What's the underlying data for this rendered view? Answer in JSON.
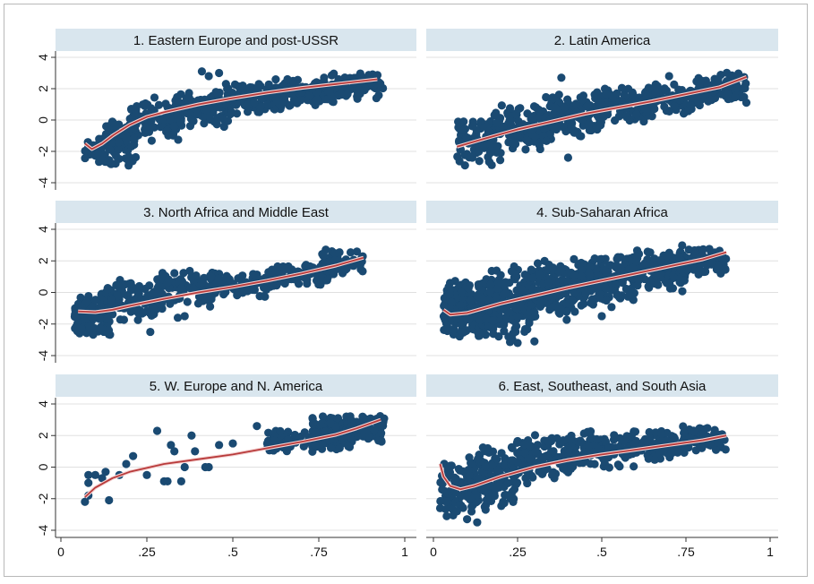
{
  "chart_data": {
    "type": "scatter",
    "xlim": [
      0,
      1
    ],
    "ylim": [
      -4,
      4
    ],
    "x_ticks": [
      {
        "value": 0,
        "label": "0"
      },
      {
        "value": 0.25,
        "label": ".25"
      },
      {
        "value": 0.5,
        "label": ".5"
      },
      {
        "value": 0.75,
        "label": ".75"
      },
      {
        "value": 1,
        "label": "1"
      }
    ],
    "y_ticks": [
      {
        "value": 4,
        "label": "4"
      },
      {
        "value": 2,
        "label": "2"
      },
      {
        "value": 0,
        "label": "0"
      },
      {
        "value": -2,
        "label": "-2"
      },
      {
        "value": -4,
        "label": "-4"
      }
    ],
    "grid": "horizontal",
    "colors": {
      "points": "#1a4a72",
      "fit_line": "#b83a3a",
      "title_band": "#d9e6ee",
      "grid": "#e0e0e0"
    },
    "panels": [
      {
        "title": "1. Eastern Europe and post-USSR",
        "fit_line": [
          [
            0.07,
            -1.5
          ],
          [
            0.09,
            -1.85
          ],
          [
            0.12,
            -1.5
          ],
          [
            0.15,
            -1.0
          ],
          [
            0.2,
            -0.3
          ],
          [
            0.25,
            0.2
          ],
          [
            0.3,
            0.5
          ],
          [
            0.4,
            1.0
          ],
          [
            0.5,
            1.4
          ],
          [
            0.6,
            1.75
          ],
          [
            0.7,
            2.05
          ],
          [
            0.8,
            2.3
          ],
          [
            0.92,
            2.6
          ]
        ],
        "clusters": [
          {
            "x": [
              0.07,
              0.12
            ],
            "y": [
              -3.0,
              -1.0
            ],
            "n": 40
          },
          {
            "x": [
              0.12,
              0.22
            ],
            "y": [
              -3.2,
              0.5
            ],
            "n": 90
          },
          {
            "x": [
              0.2,
              0.35
            ],
            "y": [
              -1.5,
              1.5
            ],
            "n": 100
          },
          {
            "x": [
              0.33,
              0.5
            ],
            "y": [
              -0.5,
              2.0
            ],
            "n": 110
          },
          {
            "x": [
              0.48,
              0.65
            ],
            "y": [
              0.3,
              2.5
            ],
            "n": 120
          },
          {
            "x": [
              0.6,
              0.8
            ],
            "y": [
              0.8,
              2.8
            ],
            "n": 120
          },
          {
            "x": [
              0.78,
              0.94
            ],
            "y": [
              1.3,
              3.1
            ],
            "n": 90
          }
        ],
        "outliers": [
          [
            0.41,
            3.1
          ],
          [
            0.46,
            3.0
          ],
          [
            0.48,
            2.3
          ],
          [
            0.43,
            2.8
          ]
        ]
      },
      {
        "title": "2. Latin America",
        "fit_line": [
          [
            0.07,
            -1.7
          ],
          [
            0.15,
            -1.2
          ],
          [
            0.25,
            -0.6
          ],
          [
            0.35,
            -0.1
          ],
          [
            0.45,
            0.4
          ],
          [
            0.55,
            0.8
          ],
          [
            0.65,
            1.2
          ],
          [
            0.75,
            1.65
          ],
          [
            0.85,
            2.1
          ],
          [
            0.93,
            2.75
          ]
        ],
        "clusters": [
          {
            "x": [
              0.07,
              0.2
            ],
            "y": [
              -3.0,
              0.3
            ],
            "n": 100
          },
          {
            "x": [
              0.18,
              0.35
            ],
            "y": [
              -2.2,
              1.0
            ],
            "n": 120
          },
          {
            "x": [
              0.33,
              0.5
            ],
            "y": [
              -1.2,
              1.8
            ],
            "n": 120
          },
          {
            "x": [
              0.48,
              0.65
            ],
            "y": [
              -0.3,
              2.2
            ],
            "n": 120
          },
          {
            "x": [
              0.62,
              0.8
            ],
            "y": [
              0.3,
              2.4
            ],
            "n": 110
          },
          {
            "x": [
              0.78,
              0.93
            ],
            "y": [
              1.0,
              3.1
            ],
            "n": 90
          }
        ],
        "outliers": [
          [
            0.4,
            -2.4
          ],
          [
            0.38,
            2.7
          ],
          [
            0.7,
            2.8
          ]
        ]
      },
      {
        "title": "3. North Africa and Middle East",
        "fit_line": [
          [
            0.05,
            -1.2
          ],
          [
            0.1,
            -1.25
          ],
          [
            0.15,
            -1.1
          ],
          [
            0.2,
            -0.85
          ],
          [
            0.3,
            -0.4
          ],
          [
            0.4,
            0.0
          ],
          [
            0.5,
            0.35
          ],
          [
            0.6,
            0.75
          ],
          [
            0.7,
            1.2
          ],
          [
            0.8,
            1.7
          ],
          [
            0.88,
            2.2
          ]
        ],
        "clusters": [
          {
            "x": [
              0.04,
              0.15
            ],
            "y": [
              -3.0,
              0.2
            ],
            "n": 100
          },
          {
            "x": [
              0.13,
              0.3
            ],
            "y": [
              -2.0,
              1.0
            ],
            "n": 110
          },
          {
            "x": [
              0.28,
              0.45
            ],
            "y": [
              -1.0,
              1.5
            ],
            "n": 90
          },
          {
            "x": [
              0.43,
              0.62
            ],
            "y": [
              -0.5,
              1.5
            ],
            "n": 80
          },
          {
            "x": [
              0.6,
              0.78
            ],
            "y": [
              0.2,
              2.0
            ],
            "n": 80
          },
          {
            "x": [
              0.76,
              0.88
            ],
            "y": [
              1.0,
              2.8
            ],
            "n": 60
          }
        ],
        "outliers": [
          [
            0.26,
            -2.5
          ],
          [
            0.34,
            -1.6
          ],
          [
            0.36,
            -1.5
          ]
        ]
      },
      {
        "title": "4. Sub-Saharan Africa",
        "fit_line": [
          [
            0.03,
            -1.1
          ],
          [
            0.05,
            -1.4
          ],
          [
            0.1,
            -1.3
          ],
          [
            0.2,
            -0.7
          ],
          [
            0.3,
            -0.2
          ],
          [
            0.4,
            0.3
          ],
          [
            0.5,
            0.75
          ],
          [
            0.6,
            1.2
          ],
          [
            0.7,
            1.65
          ],
          [
            0.8,
            2.1
          ],
          [
            0.87,
            2.55
          ]
        ],
        "clusters": [
          {
            "x": [
              0.03,
              0.15
            ],
            "y": [
              -3.0,
              0.8
            ],
            "n": 200
          },
          {
            "x": [
              0.13,
              0.3
            ],
            "y": [
              -3.2,
              1.8
            ],
            "n": 220
          },
          {
            "x": [
              0.28,
              0.45
            ],
            "y": [
              -1.8,
              2.2
            ],
            "n": 180
          },
          {
            "x": [
              0.43,
              0.6
            ],
            "y": [
              -1.0,
              2.5
            ],
            "n": 160
          },
          {
            "x": [
              0.58,
              0.75
            ],
            "y": [
              0.0,
              2.8
            ],
            "n": 140
          },
          {
            "x": [
              0.73,
              0.87
            ],
            "y": [
              1.0,
              3.0
            ],
            "n": 100
          }
        ],
        "outliers": [
          [
            0.25,
            -3.2
          ],
          [
            0.3,
            -3.1
          ],
          [
            0.5,
            -1.5
          ]
        ]
      },
      {
        "title": "5. W. Europe and N. America",
        "fit_line": [
          [
            0.07,
            -1.9
          ],
          [
            0.1,
            -1.3
          ],
          [
            0.15,
            -0.7
          ],
          [
            0.2,
            -0.3
          ],
          [
            0.3,
            0.2
          ],
          [
            0.4,
            0.5
          ],
          [
            0.5,
            0.8
          ],
          [
            0.6,
            1.2
          ],
          [
            0.7,
            1.6
          ],
          [
            0.8,
            2.05
          ],
          [
            0.86,
            2.45
          ],
          [
            0.93,
            3.0
          ]
        ],
        "clusters": [
          {
            "x": [
              0.6,
              0.75
            ],
            "y": [
              0.8,
              2.4
            ],
            "n": 80
          },
          {
            "x": [
              0.73,
              0.85
            ],
            "y": [
              1.0,
              3.3
            ],
            "n": 160
          },
          {
            "x": [
              0.83,
              0.94
            ],
            "y": [
              1.5,
              3.4
            ],
            "n": 130
          }
        ],
        "outliers": [
          [
            0.07,
            -2.2
          ],
          [
            0.08,
            -1.8
          ],
          [
            0.08,
            -1.0
          ],
          [
            0.08,
            -0.5
          ],
          [
            0.1,
            -0.5
          ],
          [
            0.12,
            -0.7
          ],
          [
            0.13,
            -0.3
          ],
          [
            0.14,
            -2.1
          ],
          [
            0.17,
            -0.5
          ],
          [
            0.19,
            0.2
          ],
          [
            0.21,
            0.7
          ],
          [
            0.25,
            -0.5
          ],
          [
            0.28,
            2.3
          ],
          [
            0.3,
            -0.9
          ],
          [
            0.31,
            -0.9
          ],
          [
            0.32,
            1.4
          ],
          [
            0.33,
            1.0
          ],
          [
            0.35,
            -0.9
          ],
          [
            0.36,
            0.0
          ],
          [
            0.38,
            2.0
          ],
          [
            0.39,
            1.0
          ],
          [
            0.42,
            0.0
          ],
          [
            0.43,
            0.0
          ],
          [
            0.46,
            1.4
          ],
          [
            0.5,
            1.5
          ],
          [
            0.57,
            2.6
          ],
          [
            0.6,
            1.5
          ]
        ]
      },
      {
        "title": "6. East, Southeast, and South Asia",
        "fit_line": [
          [
            0.02,
            0.2
          ],
          [
            0.03,
            -0.6
          ],
          [
            0.05,
            -1.2
          ],
          [
            0.08,
            -1.4
          ],
          [
            0.12,
            -1.2
          ],
          [
            0.2,
            -0.6
          ],
          [
            0.3,
            0.0
          ],
          [
            0.4,
            0.45
          ],
          [
            0.5,
            0.8
          ],
          [
            0.6,
            1.1
          ],
          [
            0.7,
            1.4
          ],
          [
            0.8,
            1.7
          ],
          [
            0.87,
            2.0
          ]
        ],
        "clusters": [
          {
            "x": [
              0.02,
              0.12
            ],
            "y": [
              -3.5,
              0.5
            ],
            "n": 80
          },
          {
            "x": [
              0.1,
              0.25
            ],
            "y": [
              -3.0,
              1.5
            ],
            "n": 140
          },
          {
            "x": [
              0.23,
              0.42
            ],
            "y": [
              -1.2,
              2.3
            ],
            "n": 130
          },
          {
            "x": [
              0.4,
              0.6
            ],
            "y": [
              -0.3,
              2.5
            ],
            "n": 110
          },
          {
            "x": [
              0.58,
              0.76
            ],
            "y": [
              0.4,
              2.5
            ],
            "n": 100
          },
          {
            "x": [
              0.74,
              0.87
            ],
            "y": [
              1.0,
              2.7
            ],
            "n": 70
          }
        ],
        "outliers": [
          [
            0.13,
            -3.5
          ],
          [
            0.1,
            -3.3
          ],
          [
            0.07,
            -2.8
          ],
          [
            0.02,
            -2.6
          ]
        ]
      }
    ]
  }
}
